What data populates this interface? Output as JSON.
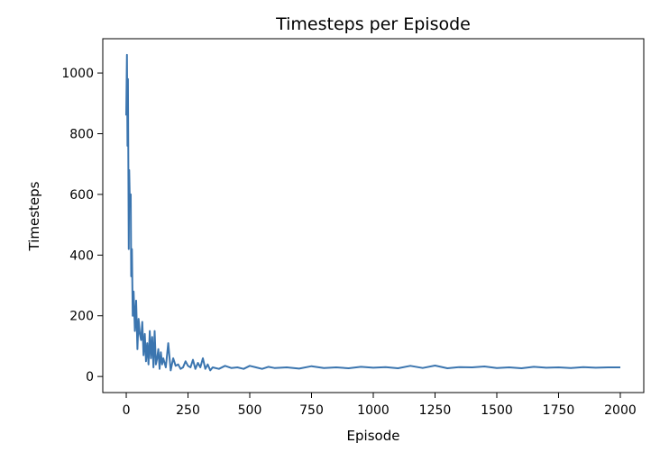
{
  "chart_data": {
    "type": "line",
    "title": "Timesteps per Episode",
    "xlabel": "Episode",
    "ylabel": "Timesteps",
    "xlim": [
      -95,
      2095
    ],
    "ylim": [
      -53,
      1113
    ],
    "x_ticks": [
      0,
      250,
      500,
      750,
      1000,
      1250,
      1500,
      1750,
      2000
    ],
    "y_ticks": [
      0,
      200,
      400,
      600,
      800,
      1000
    ],
    "grid": false,
    "legend": "none",
    "colors": {
      "line": "#3b75af"
    },
    "series": [
      {
        "x": [
          0,
          3,
          5,
          7,
          10,
          12,
          15,
          18,
          20,
          23,
          26,
          30,
          35,
          40,
          45,
          50,
          55,
          60,
          65,
          70,
          75,
          80,
          85,
          90,
          95,
          100,
          105,
          110,
          115,
          120,
          125,
          130,
          135,
          140,
          145,
          150,
          160,
          170,
          180,
          190,
          200,
          210,
          220,
          230,
          240,
          250,
          260,
          270,
          280,
          290,
          300,
          310,
          320,
          330,
          340,
          350,
          375,
          400,
          425,
          450,
          475,
          500,
          525,
          550,
          575,
          600,
          650,
          700,
          750,
          800,
          850,
          900,
          950,
          1000,
          1050,
          1100,
          1150,
          1200,
          1250,
          1300,
          1350,
          1400,
          1450,
          1500,
          1550,
          1600,
          1650,
          1700,
          1750,
          1800,
          1850,
          1900,
          1950,
          2000
        ],
        "values": [
          860,
          1060,
          760,
          980,
          420,
          680,
          560,
          600,
          330,
          420,
          200,
          280,
          150,
          250,
          90,
          190,
          140,
          120,
          180,
          70,
          140,
          50,
          110,
          40,
          150,
          60,
          130,
          30,
          150,
          40,
          60,
          90,
          25,
          80,
          40,
          60,
          30,
          110,
          20,
          60,
          35,
          40,
          25,
          30,
          50,
          35,
          30,
          55,
          25,
          45,
          30,
          60,
          25,
          40,
          20,
          30,
          25,
          35,
          28,
          30,
          25,
          35,
          30,
          25,
          32,
          28,
          30,
          26,
          34,
          28,
          30,
          27,
          32,
          29,
          31,
          27,
          35,
          28,
          36,
          27,
          31,
          30,
          33,
          28,
          30,
          27,
          32,
          29,
          30,
          28,
          31,
          29,
          30,
          30
        ]
      }
    ]
  }
}
